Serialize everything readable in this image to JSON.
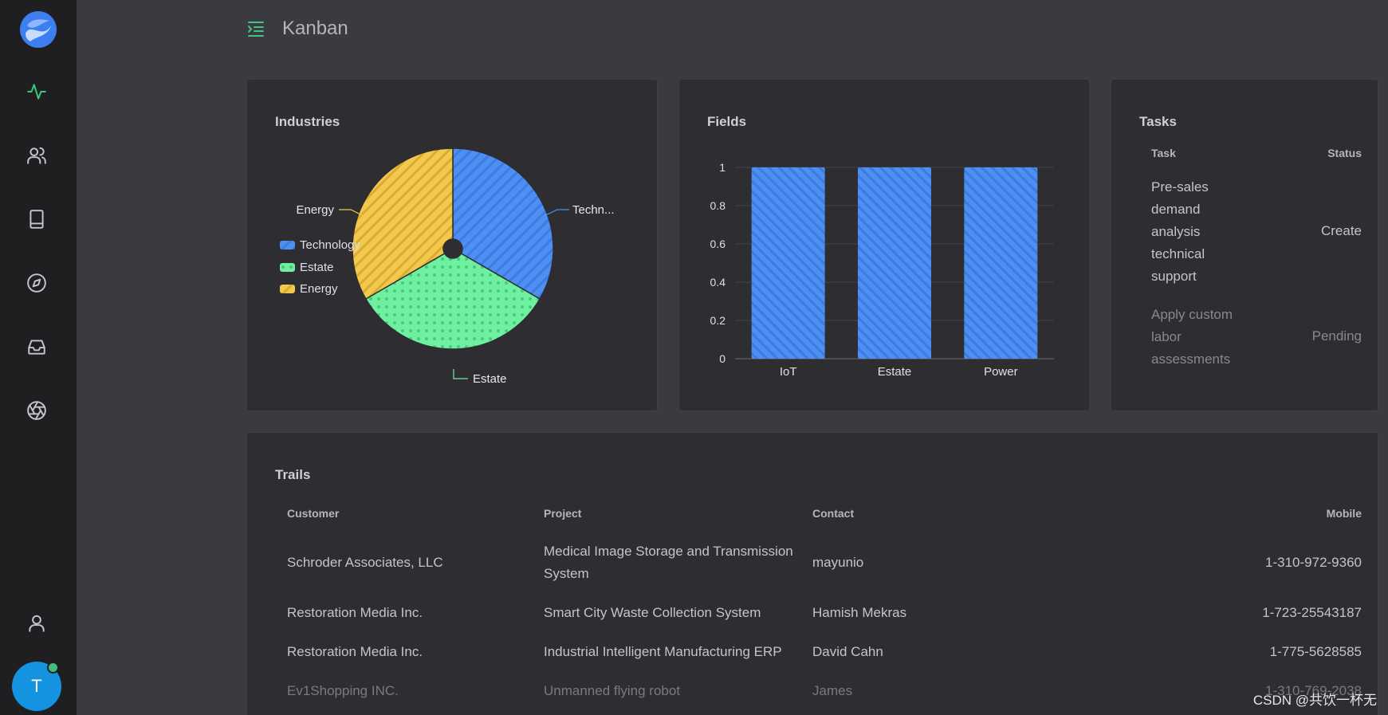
{
  "header": {
    "title": "Kanban"
  },
  "sidebar": {
    "items": [
      {
        "name": "activity-icon",
        "active": true
      },
      {
        "name": "users-icon"
      },
      {
        "name": "book-icon"
      },
      {
        "name": "compass-icon"
      },
      {
        "name": "inbox-icon"
      },
      {
        "name": "aperture-icon"
      },
      {
        "name": "user-icon"
      }
    ],
    "avatar_letter": "T"
  },
  "industries": {
    "title": "Industries",
    "legend": [
      "Technology",
      "Estate",
      "Energy"
    ],
    "labels": {
      "technology": "Techn...",
      "estate": "Estate",
      "energy": "Energy"
    }
  },
  "fields": {
    "title": "Fields"
  },
  "tasks": {
    "title": "Tasks",
    "columns": {
      "task": "Task",
      "status": "Status"
    },
    "rows": [
      {
        "task": "Pre-sales demand analysis technical support",
        "status": "Create"
      },
      {
        "task": "Apply custom labor assessments",
        "status": "Pending"
      }
    ]
  },
  "trails": {
    "title": "Trails",
    "columns": {
      "customer": "Customer",
      "project": "Project",
      "contact": "Contact",
      "mobile": "Mobile"
    },
    "rows": [
      {
        "customer": "Schroder Associates, LLC",
        "project": "Medical Image Storage and Transmission System",
        "contact": "mayunio",
        "mobile": "1-310-972-9360"
      },
      {
        "customer": "Restoration Media Inc.",
        "project": "Smart City Waste Collection System",
        "contact": "Hamish Mekras",
        "mobile": "1-723-25543187"
      },
      {
        "customer": "Restoration Media Inc.",
        "project": "Industrial Intelligent Manufacturing ERP",
        "contact": "David Cahn",
        "mobile": "1-775-5628585"
      },
      {
        "customer": "Ev1Shopping INC.",
        "project": "Unmanned flying robot",
        "contact": "James",
        "mobile": "1-310-769-2038"
      }
    ]
  },
  "watermark": "CSDN @共饮一杯无",
  "chart_data": [
    {
      "type": "pie",
      "title": "Industries",
      "categories": [
        "Technology",
        "Estate",
        "Energy"
      ],
      "values": [
        1,
        1,
        1
      ],
      "legend": "left",
      "colors": [
        "#4e8ff3",
        "#6ef0a0",
        "#f2c94c"
      ]
    },
    {
      "type": "bar",
      "title": "Fields",
      "categories": [
        "IoT",
        "Estate",
        "Power"
      ],
      "values": [
        1,
        1,
        1
      ],
      "ylim": [
        0,
        1
      ],
      "yticks": [
        0,
        0.2,
        0.4,
        0.6,
        0.8,
        1
      ],
      "grid": true,
      "colors": [
        "#4e8ff3"
      ]
    }
  ]
}
